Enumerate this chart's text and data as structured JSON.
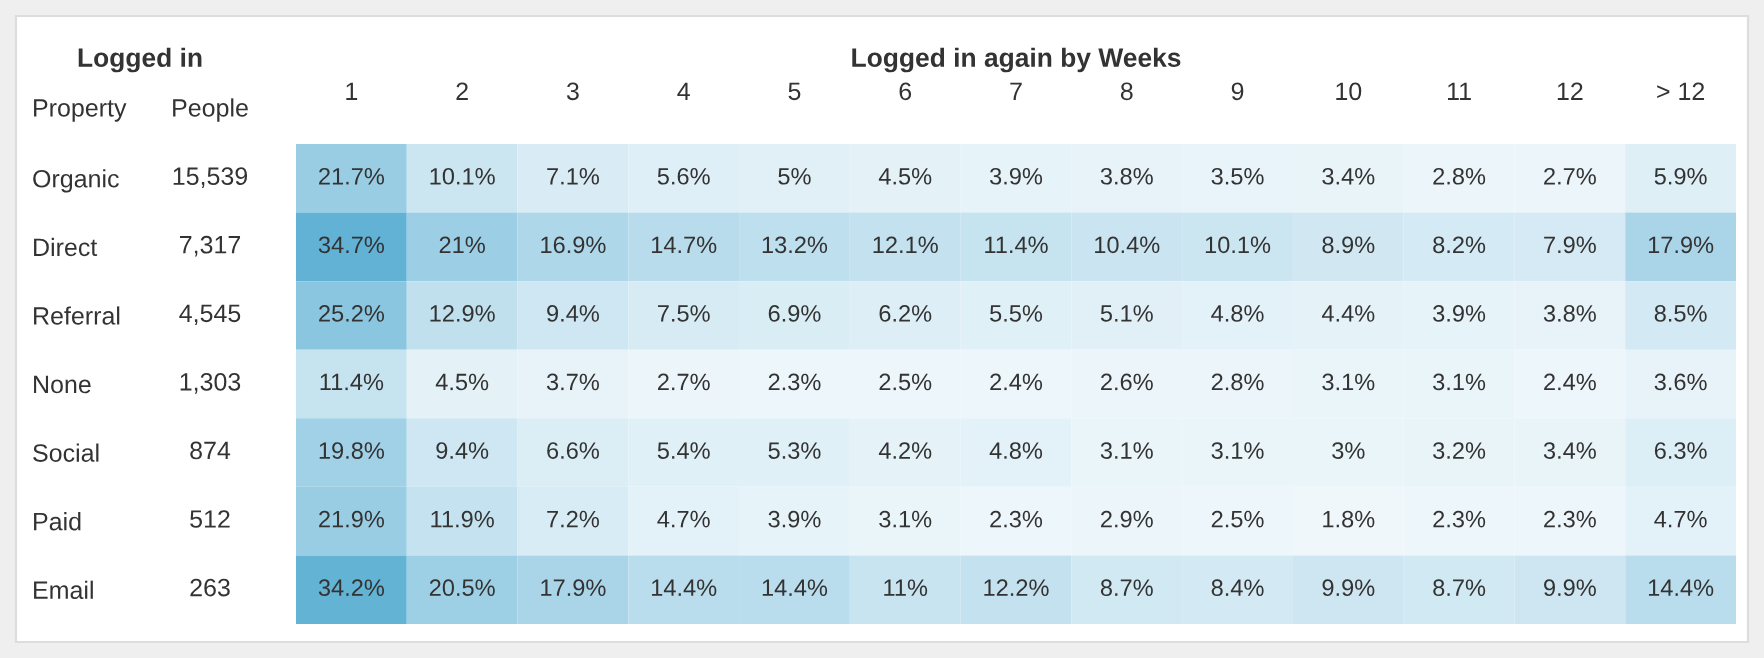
{
  "chart_data": {
    "type": "heatmap",
    "title": "Logged in again by Weeks",
    "annotations": [
      "Logged in"
    ],
    "ylabel": "Property",
    "y2label": "People",
    "categories": [
      "1",
      "2",
      "3",
      "4",
      "5",
      "6",
      "7",
      "8",
      "9",
      "10",
      "11",
      "12",
      "> 12"
    ],
    "y_categories": [
      "Organic",
      "Direct",
      "Referral",
      "None",
      "Social",
      "Paid",
      "Email"
    ],
    "y2_categories": [
      "15,539",
      "7,317",
      "4,545",
      "1,303",
      "874",
      "512",
      "263"
    ],
    "cells": [
      [
        21.7,
        10.1,
        7.1,
        5.6,
        5,
        4.5,
        3.9,
        3.8,
        3.5,
        3.4,
        2.8,
        2.7,
        5.9
      ],
      [
        34.7,
        21,
        16.9,
        14.7,
        13.2,
        12.1,
        11.4,
        10.4,
        10.1,
        8.9,
        8.2,
        7.9,
        17.9
      ],
      [
        25.2,
        12.9,
        9.4,
        7.5,
        6.9,
        6.2,
        5.5,
        5.1,
        4.8,
        4.4,
        3.9,
        3.8,
        8.5
      ],
      [
        11.4,
        4.5,
        3.7,
        2.7,
        2.3,
        2.5,
        2.4,
        2.6,
        2.8,
        3.1,
        3.1,
        2.4,
        3.6
      ],
      [
        19.8,
        9.4,
        6.6,
        5.4,
        5.3,
        4.2,
        4.8,
        3.1,
        3.1,
        3,
        3.2,
        3.4,
        6.3
      ],
      [
        21.9,
        11.9,
        7.2,
        4.7,
        3.9,
        3.1,
        2.3,
        2.9,
        2.5,
        1.8,
        2.3,
        2.3,
        4.7
      ],
      [
        34.2,
        20.5,
        17.9,
        14.4,
        14.4,
        11,
        12.2,
        8.7,
        8.4,
        9.9,
        8.7,
        9.9,
        14.4
      ]
    ],
    "cell_labels": [
      [
        "21.7%",
        "10.1%",
        "7.1%",
        "5.6%",
        "5%",
        "4.5%",
        "3.9%",
        "3.8%",
        "3.5%",
        "3.4%",
        "2.8%",
        "2.7%",
        "5.9%"
      ],
      [
        "34.7%",
        "21%",
        "16.9%",
        "14.7%",
        "13.2%",
        "12.1%",
        "11.4%",
        "10.4%",
        "10.1%",
        "8.9%",
        "8.2%",
        "7.9%",
        "17.9%"
      ],
      [
        "25.2%",
        "12.9%",
        "9.4%",
        "7.5%",
        "6.9%",
        "6.2%",
        "5.5%",
        "5.1%",
        "4.8%",
        "4.4%",
        "3.9%",
        "3.8%",
        "8.5%"
      ],
      [
        "11.4%",
        "4.5%",
        "3.7%",
        "2.7%",
        "2.3%",
        "2.5%",
        "2.4%",
        "2.6%",
        "2.8%",
        "3.1%",
        "3.1%",
        "2.4%",
        "3.6%"
      ],
      [
        "19.8%",
        "9.4%",
        "6.6%",
        "5.4%",
        "5.3%",
        "4.2%",
        "4.8%",
        "3.1%",
        "3.1%",
        "3%",
        "3.2%",
        "3.4%",
        "6.3%"
      ],
      [
        "21.9%",
        "11.9%",
        "7.2%",
        "4.7%",
        "3.9%",
        "3.1%",
        "2.3%",
        "2.9%",
        "2.5%",
        "1.8%",
        "2.3%",
        "2.3%",
        "4.7%"
      ],
      [
        "34.2%",
        "20.5%",
        "17.9%",
        "14.4%",
        "14.4%",
        "11%",
        "12.2%",
        "8.7%",
        "8.4%",
        "9.9%",
        "8.7%",
        "9.9%",
        "14.4%"
      ]
    ]
  }
}
